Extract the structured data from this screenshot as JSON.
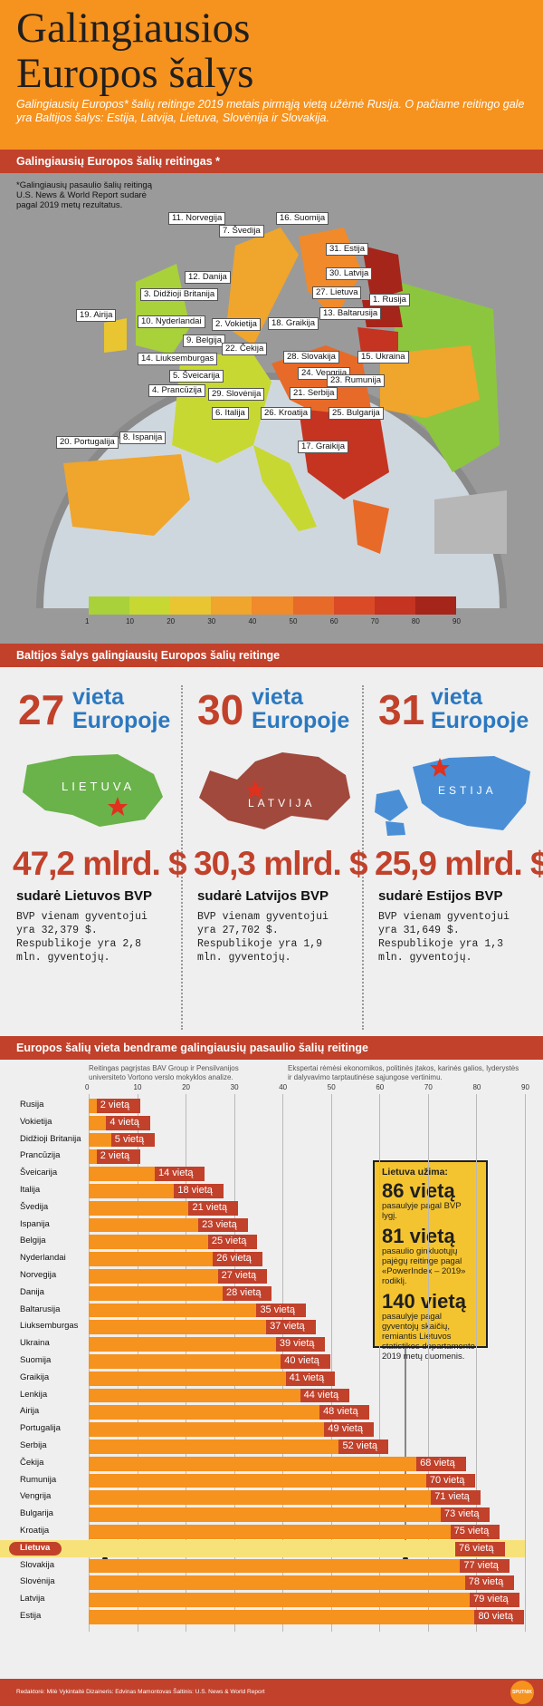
{
  "header": {
    "title_line1": "Galingiausios",
    "title_line2": "Europos šalys",
    "subtitle": "Galingiausių Europos* šalių reitinge 2019 metais pirmąją vietą užėmė Rusija. O pačiame reitingo gale yra Baltijos šalys: Estija, Latvija, Lietuva, Slovėnija ir Slovakija."
  },
  "map_section": {
    "bar_title": "Galingiausių Europos šalių reitingas *",
    "note": "*Galingiausių pasaulio šalių reitingą U.S. News & World Report sudarė pagal 2019 metų rezultatus.",
    "labels": [
      "11. Norvegija",
      "16. Suomija",
      "7. Švedija",
      "31. Estija",
      "12. Danija",
      "30. Latvija",
      "1. Rusija",
      "3. Didžioji Britanija",
      "27. Lietuva",
      "19. Airija",
      "10. Nyderlandai",
      "2. Vokietija",
      "18. Graikija",
      "13. Baltarusija",
      "9. Belgija",
      "22. Čekija",
      "28. Slovakija",
      "14. Liuksemburgas",
      "15. Ukraina",
      "24. Vengrija",
      "5. Šveicarija",
      "23. Rumunija",
      "4. Prancūzija",
      "29. Slovėnija",
      "21. Serbija",
      "6. Italija",
      "26. Kroatija",
      "25. Bulgarija",
      "20. Portugalija",
      "8. Ispanija",
      "17. Graikija"
    ],
    "scale_ticks": [
      "1",
      "10",
      "20",
      "30",
      "40",
      "50",
      "60",
      "70",
      "80",
      "90"
    ],
    "scale_colors": [
      "#a8d13a",
      "#c7d833",
      "#e9c531",
      "#f0a52c",
      "#f08a2a",
      "#e86a28",
      "#db4a26",
      "#c53321",
      "#a5251a"
    ]
  },
  "baltic": {
    "bar_title": "Baltijos šalys galingiausių Europos šalių reitinge",
    "cols": [
      {
        "rank": "27",
        "rank_l1": "vieta",
        "rank_l2": "Europoje",
        "map_label": "LIETUVA",
        "gdp": "47,2 mlrd. $",
        "gdp_sub": "sudarė Lietuvos BVP",
        "note": "BVP vienam gyventojui yra 32,379 $. Respublikoje yra 2,8 mln. gyventojų.",
        "color": "#6ab24a"
      },
      {
        "rank": "30",
        "rank_l1": "vieta",
        "rank_l2": "Europoje",
        "map_label": "LATVIJA",
        "gdp": "30,3 mlrd. $",
        "gdp_sub": "sudarė Latvijos BVP",
        "note": "BVP vienam gyventojui yra 27,702 $. Respublikoje yra 1,9 mln. gyventojų.",
        "color": "#a0493c"
      },
      {
        "rank": "31",
        "rank_l1": "vieta",
        "rank_l2": "Europoje",
        "map_label": "ESTIJA",
        "gdp": "25,9 mlrd. $",
        "gdp_sub": "sudarė Estijos BVP",
        "note": "BVP vienam gyventojui yra 31,649 $. Respublikoje yra 1,3 mln. gyventojų.",
        "color": "#4a8fd6"
      }
    ]
  },
  "bars_section": {
    "bar_title": "Europos šalių vieta bendrame galingiausių pasaulio šalių reitinge",
    "note_left": "Reitingas pagrįstas BAV Group ir Pensilvanijos universiteto Vortono verslo mokyklos analize.",
    "note_right": "Ekspertai rėmėsi ekonomikos, politinės įtakos, karinės galios, lyderystės ir dalyvavimo tarptautinėse sąjungose vertinimu.",
    "callout": {
      "head": "Lietuva užima:",
      "big1": "86 vietą",
      "small1": "pasaulyje pagal BVP lygį.",
      "big2": "81 vietą",
      "small2": "pasaulio ginkluotųjų pajėgų reitinge pagal «PowerIndex – 2019» rodiklį.",
      "big3": "140 vietą",
      "small3": "pasaulyje pagal gyventojų skaičių, remiantis Lietuvos statistikos departamento 2019 metų duomenis."
    }
  },
  "chart_data": {
    "type": "bar",
    "orientation": "horizontal",
    "xlim": [
      0,
      90
    ],
    "xticks": [
      0,
      10,
      20,
      30,
      40,
      50,
      60,
      70,
      80,
      90
    ],
    "categories": [
      "Rusija",
      "Vokietija",
      "Didžioji Britanija",
      "Prancūzija",
      "Šveicarija",
      "Italija",
      "Švedija",
      "Ispanija",
      "Belgija",
      "Nyderlandai",
      "Norvegija",
      "Danija",
      "Baltarusija",
      "Liuksemburgas",
      "Ukraina",
      "Suomija",
      "Graikija",
      "Lenkija",
      "Airija",
      "Portugalija",
      "Serbija",
      "Čekija",
      "Rumunija",
      "Vengrija",
      "Bulgarija",
      "Kroatija",
      "Lietuva",
      "Slovakija",
      "Slovėnija",
      "Latvija",
      "Estija"
    ],
    "values": [
      2,
      4,
      5,
      2,
      14,
      18,
      21,
      23,
      25,
      26,
      27,
      28,
      35,
      37,
      39,
      40,
      41,
      44,
      48,
      49,
      52,
      68,
      70,
      71,
      73,
      75,
      76,
      77,
      78,
      79,
      80
    ],
    "labels": [
      "2 vietą",
      "4 vietą",
      "5 vietą",
      "2 vietą",
      "14 vietą",
      "18 vietą",
      "21 vietą",
      "23 vietą",
      "25 vietą",
      "26 vietą",
      "27 vietą",
      "28 vietą",
      "35 vietą",
      "37 vietą",
      "39 vietą",
      "40 vietą",
      "41 vietą",
      "44 vietą",
      "48 vietą",
      "49 vietą",
      "52 vietą",
      "68 vietą",
      "70 vietą",
      "71 vietą",
      "73 vietą",
      "75 vietą",
      "76 vietą",
      "77 vietą",
      "78 vietą",
      "79 vietą",
      "80 vietą"
    ],
    "highlight": "Lietuva"
  },
  "footer": {
    "text": "Redaktorė: Milė Vykintaitė Dizaineris: Edvinas Mamontovas Šaltinis: U.S. News & World Report",
    "logo": "SPUTNIK"
  }
}
